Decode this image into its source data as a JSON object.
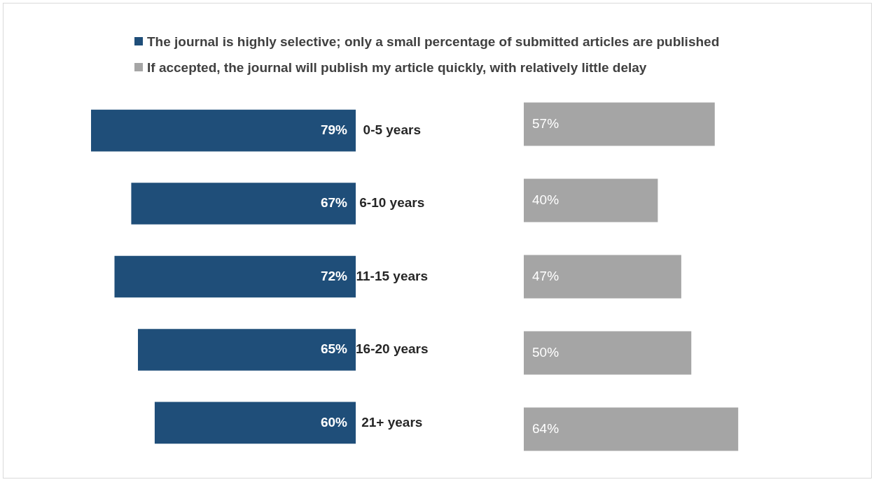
{
  "chart_data": [
    {
      "type": "bar",
      "orientation": "horizontal",
      "categories": [
        "0-5 years",
        "6-10 years",
        "11-15 years",
        "16-20 years",
        "21+ years"
      ],
      "series": [
        {
          "name": "The journal is highly selective; only a small percentage of submitted articles are published",
          "color": "#1f4e79",
          "values": [
            79,
            67,
            72,
            65,
            60
          ],
          "value_labels": [
            "79%",
            "67%",
            "72%",
            "65%",
            "60%"
          ]
        }
      ],
      "legend": "top",
      "tick_labels": "y"
    },
    {
      "type": "bar",
      "orientation": "horizontal",
      "categories": [
        null,
        null,
        null,
        null,
        null
      ],
      "series": [
        {
          "name": "If accepted, the journal will publish my article quickly, with relatively little delay",
          "color": "#a5a5a5",
          "values": [
            57,
            40,
            47,
            50,
            64
          ],
          "value_labels": [
            "57%",
            "40%",
            "47%",
            "50%",
            "64%"
          ]
        }
      ],
      "legend": "top",
      "tick_labels": false
    }
  ]
}
